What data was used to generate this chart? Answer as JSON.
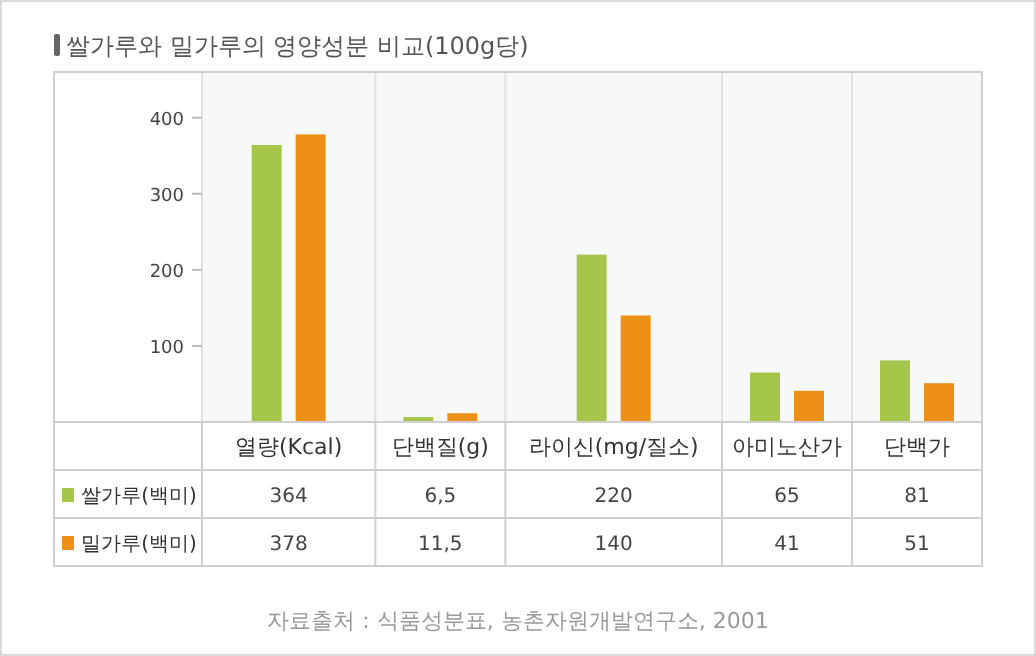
{
  "chart_data": {
    "type": "bar",
    "title": "쌀가루와 밀가루의 영양성분 비교(100g당)",
    "categories": [
      "열량(Kcal)",
      "단백질(g)",
      "라이신(mg/질소)",
      "아미노산가",
      "단백가"
    ],
    "series": [
      {
        "name": "쌀가루(백미)",
        "color": "#a5c64b",
        "values": [
          364,
          6.5,
          220,
          65,
          81
        ],
        "value_labels": [
          "364",
          "6,5",
          "220",
          "65",
          "81"
        ]
      },
      {
        "name": "밀가루(백미)",
        "color": "#ec9116",
        "values": [
          378,
          11.5,
          140,
          41,
          51
        ],
        "value_labels": [
          "378",
          "11,5",
          "140",
          "41",
          "51"
        ]
      }
    ],
    "ylim": [
      0,
      460
    ],
    "yticks": [
      100,
      200,
      300,
      400
    ],
    "grid": false,
    "legend": "bottom left",
    "data_labels": true,
    "annotations": [
      "자료출처 : 식품성분표, 농촌자원개발연구소, 2001"
    ]
  }
}
